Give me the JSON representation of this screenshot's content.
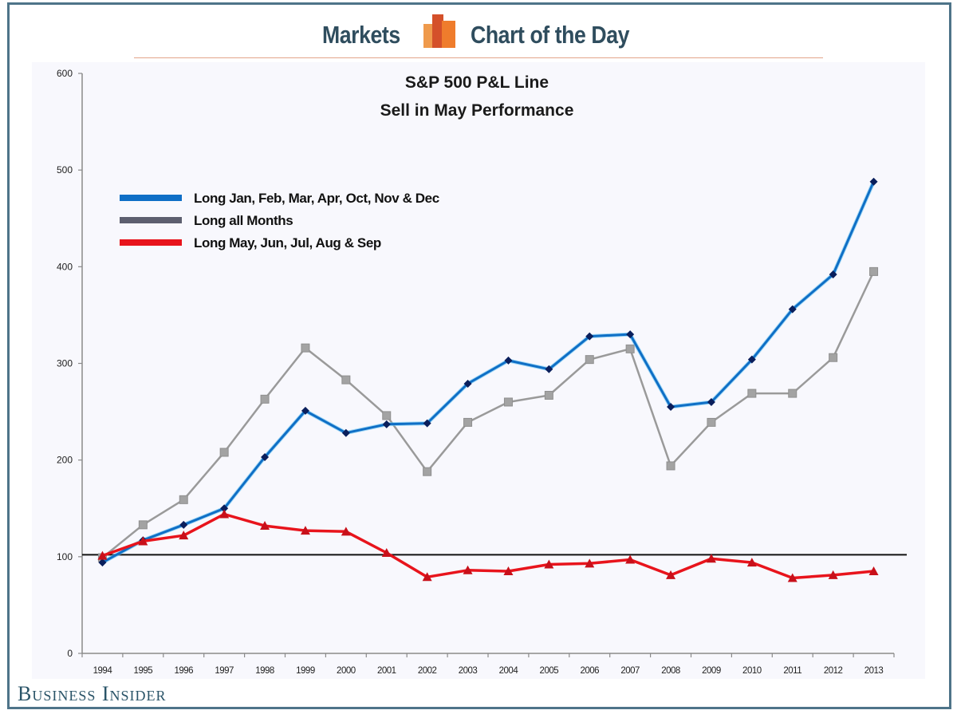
{
  "header": {
    "left_text": "Markets",
    "right_text": "Chart of the Day",
    "logo_icon": "bar-chart-logo-icon"
  },
  "footer": {
    "brand": "Business Insider"
  },
  "colors": {
    "frame": "#4e7489",
    "header_text": "#2f4d5e",
    "blue_series": "#0f6fc6",
    "gray_series": "#9a9a9a",
    "red_series": "#e8141c",
    "reference_line": "#111111"
  },
  "chart_data": {
    "type": "line",
    "title": "S&P 500 P&L Line",
    "subtitle": "Sell in May Performance",
    "xlabel": "",
    "ylabel": "",
    "ylim": [
      0,
      600
    ],
    "yticks": [
      0,
      100,
      200,
      300,
      400,
      500,
      600
    ],
    "ytick_labels": [
      "0",
      "100",
      "200",
      "300",
      "400",
      "500",
      "600"
    ],
    "grid": false,
    "legend_position": "top-left",
    "reference_line": 102,
    "categories": [
      "1994",
      "1995",
      "1996",
      "1997",
      "1998",
      "1999",
      "2000",
      "2001",
      "2002",
      "2003",
      "2004",
      "2005",
      "2006",
      "2007",
      "2008",
      "2009",
      "2010",
      "2011",
      "2012",
      "2013"
    ],
    "series": [
      {
        "name": "Long Jan, Feb, Mar, Apr, Oct, Nov & Dec",
        "color": "#0f6fc6",
        "marker": "diamond",
        "values": [
          94,
          117,
          133,
          150,
          203,
          251,
          228,
          237,
          238,
          279,
          303,
          294,
          328,
          330,
          255,
          260,
          304,
          356,
          392,
          488
        ]
      },
      {
        "name": "Long all Months",
        "color": "#9a9a9a",
        "legend_color": "#5d5f6f",
        "marker": "square",
        "values": [
          99,
          133,
          159,
          208,
          263,
          316,
          283,
          246,
          188,
          239,
          260,
          267,
          304,
          315,
          194,
          239,
          269,
          269,
          306,
          395
        ]
      },
      {
        "name": "Long May, Jun, Jul, Aug & Sep",
        "color": "#e8141c",
        "marker": "triangle",
        "values": [
          101,
          116,
          122,
          144,
          132,
          127,
          126,
          104,
          79,
          86,
          85,
          92,
          93,
          97,
          81,
          98,
          94,
          78,
          81,
          85
        ]
      }
    ]
  }
}
